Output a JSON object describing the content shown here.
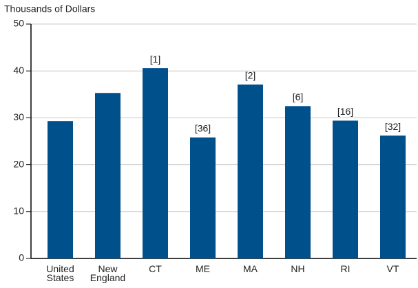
{
  "chart_data": {
    "type": "bar",
    "y_label": "Thousands of Dollars",
    "categories": [
      "United States",
      "New England",
      "CT",
      "ME",
      "MA",
      "NH",
      "RI",
      "VT"
    ],
    "values": [
      29.3,
      35.3,
      40.6,
      25.8,
      37.1,
      32.5,
      29.4,
      26.2
    ],
    "annotations": [
      null,
      null,
      "[1]",
      "[36]",
      "[2]",
      "[6]",
      "[16]",
      "[32]"
    ],
    "color": "#00508c",
    "ylim": [
      0,
      50
    ],
    "yticks": [
      0,
      10,
      20,
      30,
      40,
      50
    ],
    "grid": true
  }
}
